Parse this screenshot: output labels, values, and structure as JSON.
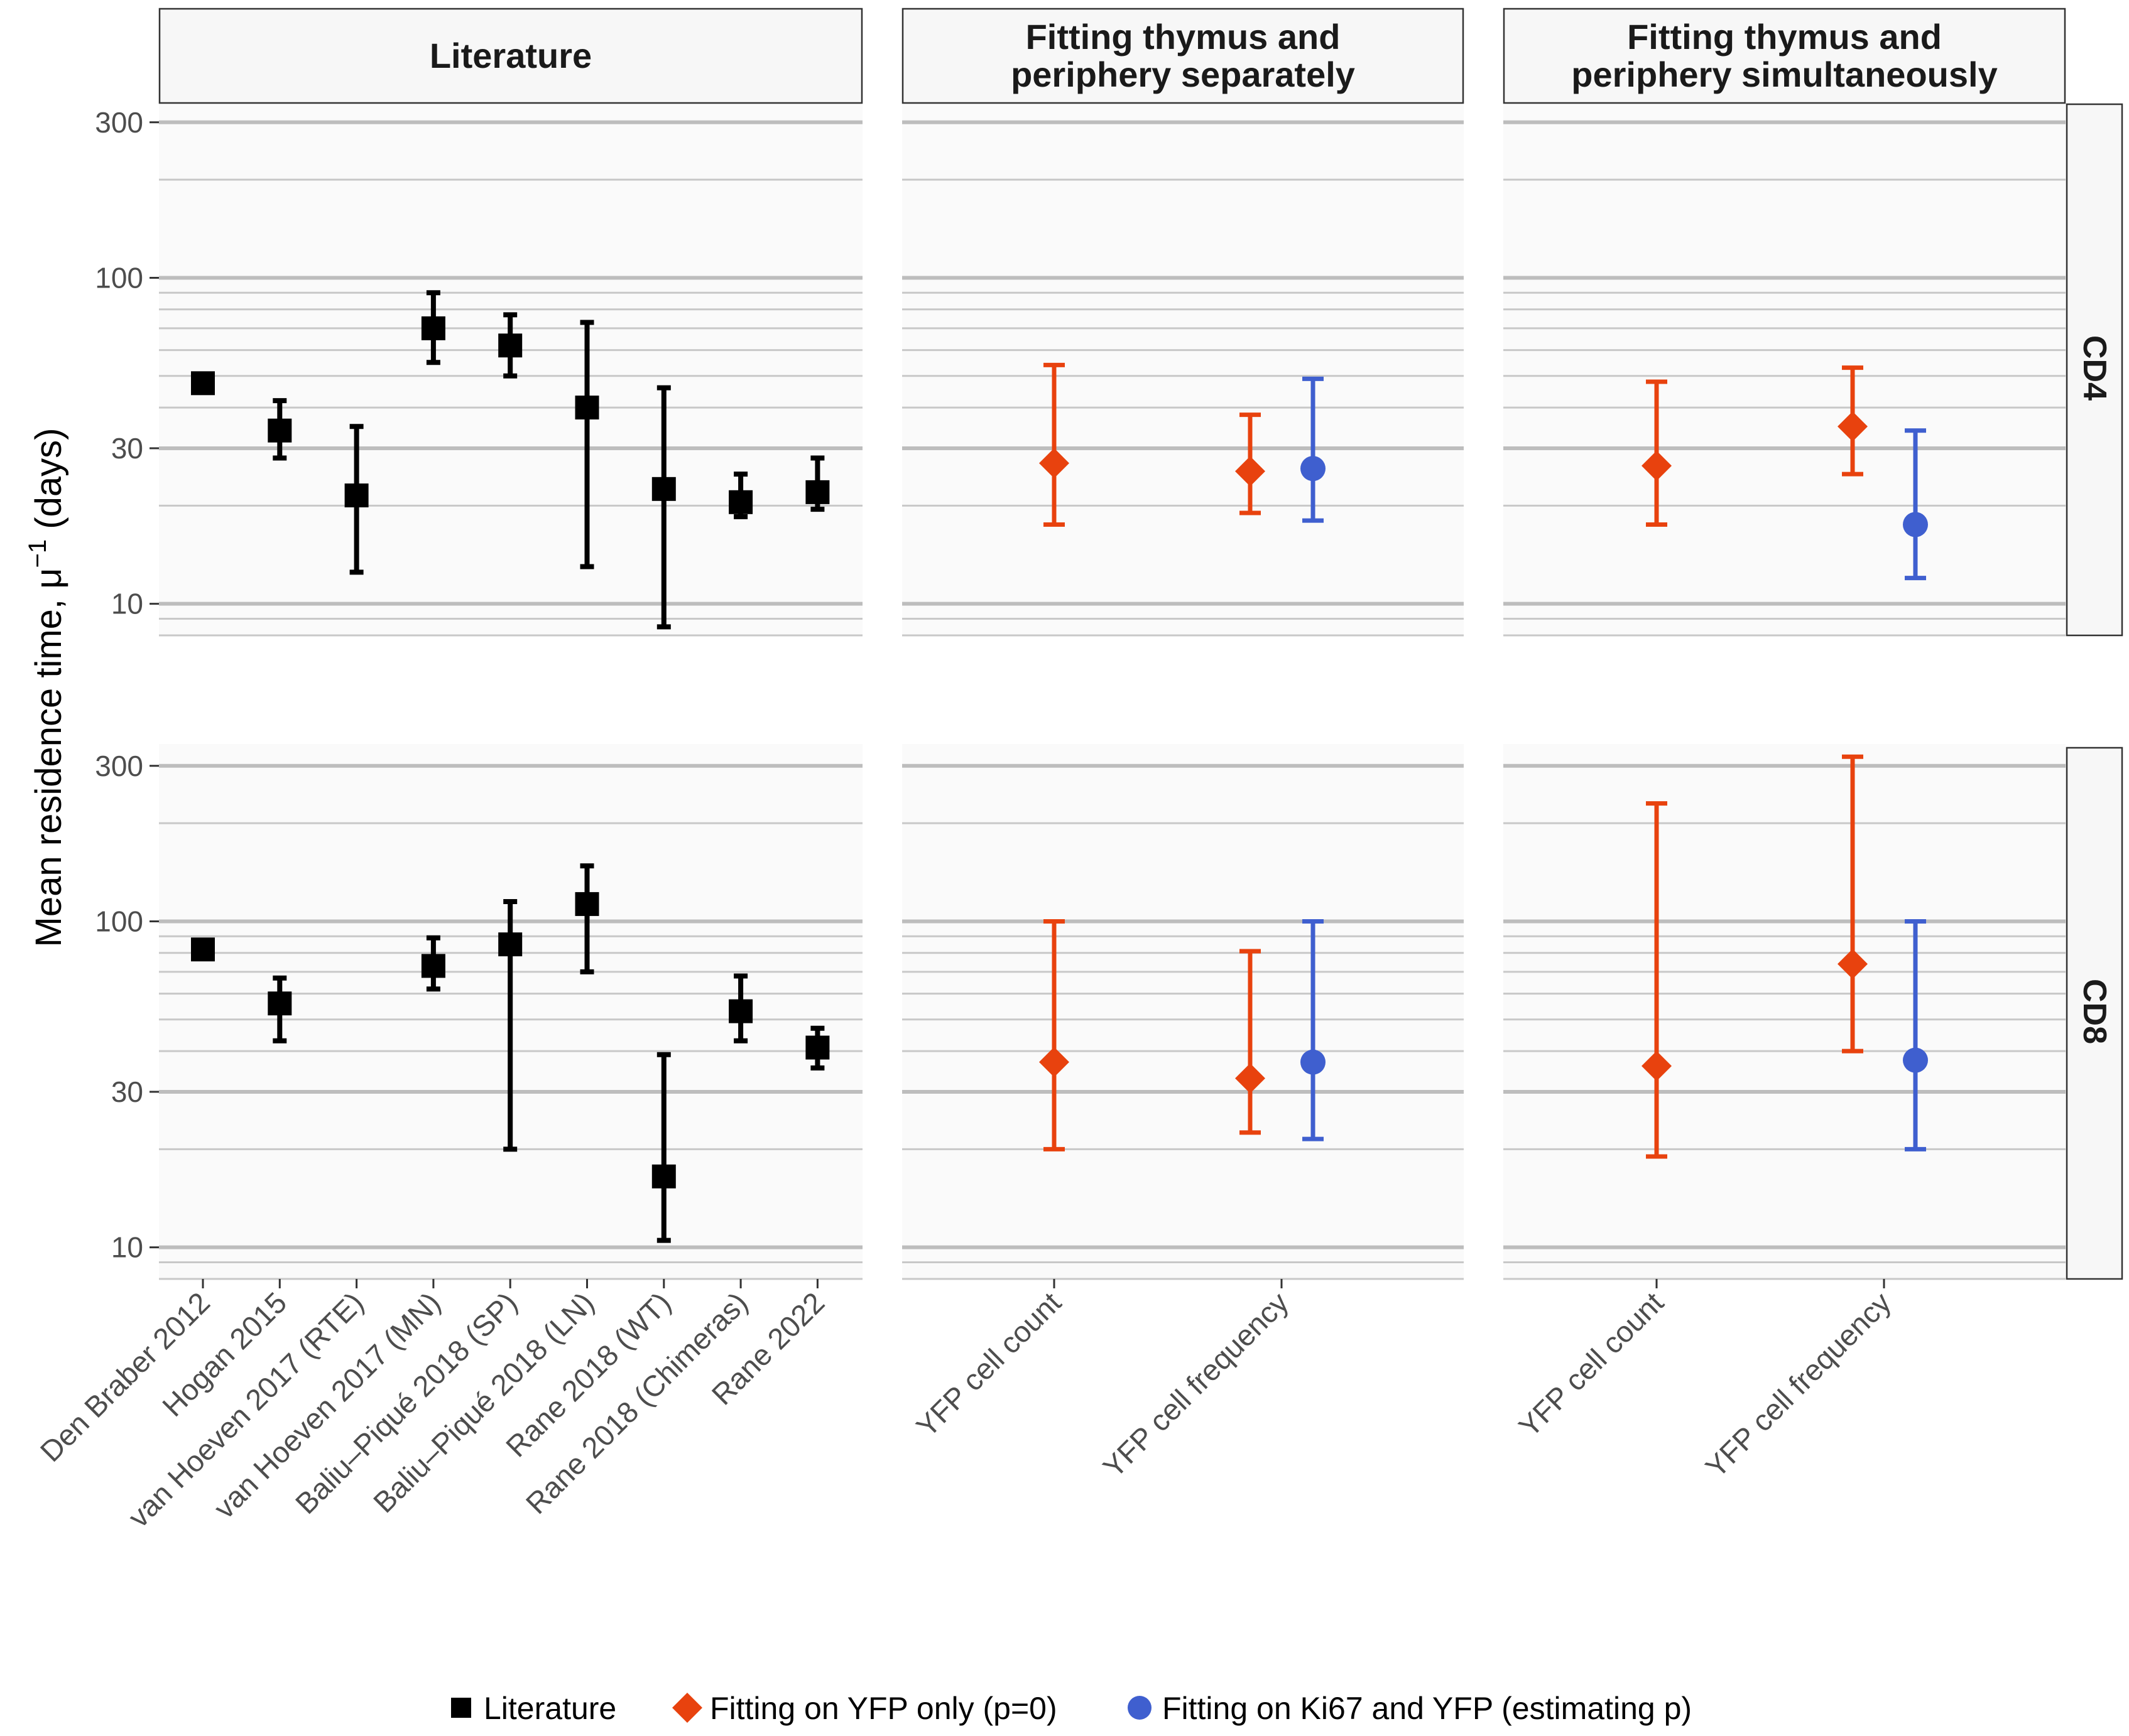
{
  "chart_data": {
    "type": "scatter",
    "y_label": "Mean residence time, μ",
    "y_label_sup": "−1",
    "y_label_suffix": " (days)",
    "y_scale": "log10",
    "y_range": [
      8,
      350
    ],
    "y_ticks": [
      10,
      30,
      100,
      300
    ],
    "y_tick_labels": [
      "10",
      "30",
      "100",
      "300"
    ],
    "columns": [
      {
        "key": "lit",
        "strip": [
          "Literature"
        ],
        "categories": [
          "Den Braber 2012",
          "Hogan 2015",
          "van Hoeven 2017 (RTE)",
          "van Hoeven 2017 (MN)",
          "Baliu–Piqué 2018 (SP)",
          "Baliu–Piqué 2018 (LN)",
          "Rane 2018 (WT)",
          "Rane 2018 (Chimeras)",
          "Rane 2022"
        ]
      },
      {
        "key": "sep",
        "strip": [
          "Fitting thymus and",
          "periphery separately"
        ],
        "categories": [
          "YFP cell count",
          "YFP cell frequency"
        ]
      },
      {
        "key": "sim",
        "strip": [
          "Fitting thymus and",
          "periphery simultaneously"
        ],
        "categories": [
          "YFP cell count",
          "YFP cell frequency"
        ]
      }
    ],
    "rows": [
      {
        "key": "CD4",
        "strip": "CD4"
      },
      {
        "key": "CD8",
        "strip": "CD8"
      }
    ],
    "series": [
      {
        "name": "Literature",
        "shape": "square",
        "color": "#000000"
      },
      {
        "name": "Fitting on YFP only (p=0)",
        "shape": "diamond",
        "color": "#E8420E"
      },
      {
        "name": "Fitting on Ki67 and YFP (estimating p)",
        "shape": "circle",
        "color": "#3F5FCF"
      }
    ],
    "points": [
      {
        "row": "CD4",
        "col": "lit",
        "cat": 0,
        "series": 0,
        "y": 47.5,
        "lo": null,
        "hi": null
      },
      {
        "row": "CD4",
        "col": "lit",
        "cat": 1,
        "series": 0,
        "y": 34,
        "lo": 28,
        "hi": 42
      },
      {
        "row": "CD4",
        "col": "lit",
        "cat": 2,
        "series": 0,
        "y": 21.5,
        "lo": 12.5,
        "hi": 35
      },
      {
        "row": "CD4",
        "col": "lit",
        "cat": 3,
        "series": 0,
        "y": 70,
        "lo": 55,
        "hi": 90
      },
      {
        "row": "CD4",
        "col": "lit",
        "cat": 4,
        "series": 0,
        "y": 62,
        "lo": 50,
        "hi": 77
      },
      {
        "row": "CD4",
        "col": "lit",
        "cat": 5,
        "series": 0,
        "y": 40,
        "lo": 13,
        "hi": 73
      },
      {
        "row": "CD4",
        "col": "lit",
        "cat": 6,
        "series": 0,
        "y": 22.5,
        "lo": 8.5,
        "hi": 46
      },
      {
        "row": "CD4",
        "col": "lit",
        "cat": 7,
        "series": 0,
        "y": 20.5,
        "lo": 18.5,
        "hi": 25
      },
      {
        "row": "CD4",
        "col": "lit",
        "cat": 8,
        "series": 0,
        "y": 22,
        "lo": 19.5,
        "hi": 28
      },
      {
        "row": "CD4",
        "col": "sep",
        "cat": 0,
        "series": 1,
        "y": 27,
        "lo": 17.5,
        "hi": 54
      },
      {
        "row": "CD4",
        "col": "sep",
        "cat": 1,
        "series": 1,
        "y": 25.5,
        "lo": 19,
        "hi": 38
      },
      {
        "row": "CD4",
        "col": "sep",
        "cat": 1,
        "series": 2,
        "y": 26,
        "lo": 18,
        "hi": 49
      },
      {
        "row": "CD4",
        "col": "sim",
        "cat": 0,
        "series": 1,
        "y": 26.5,
        "lo": 17.5,
        "hi": 48
      },
      {
        "row": "CD4",
        "col": "sim",
        "cat": 1,
        "series": 1,
        "y": 35,
        "lo": 25,
        "hi": 53
      },
      {
        "row": "CD4",
        "col": "sim",
        "cat": 1,
        "series": 2,
        "y": 17.5,
        "lo": 12,
        "hi": 34
      },
      {
        "row": "CD8",
        "col": "lit",
        "cat": 0,
        "series": 0,
        "y": 82,
        "lo": null,
        "hi": null
      },
      {
        "row": "CD8",
        "col": "lit",
        "cat": 1,
        "series": 0,
        "y": 56,
        "lo": 43,
        "hi": 67
      },
      {
        "row": "CD8",
        "col": "lit",
        "cat": 3,
        "series": 0,
        "y": 73,
        "lo": 62,
        "hi": 89
      },
      {
        "row": "CD8",
        "col": "lit",
        "cat": 4,
        "series": 0,
        "y": 85,
        "lo": 20,
        "hi": 115
      },
      {
        "row": "CD8",
        "col": "lit",
        "cat": 5,
        "series": 0,
        "y": 113,
        "lo": 70,
        "hi": 148
      },
      {
        "row": "CD8",
        "col": "lit",
        "cat": 6,
        "series": 0,
        "y": 16.5,
        "lo": 10.5,
        "hi": 39
      },
      {
        "row": "CD8",
        "col": "lit",
        "cat": 7,
        "series": 0,
        "y": 53,
        "lo": 43,
        "hi": 68
      },
      {
        "row": "CD8",
        "col": "lit",
        "cat": 8,
        "series": 0,
        "y": 41,
        "lo": 35.5,
        "hi": 47
      },
      {
        "row": "CD8",
        "col": "sep",
        "cat": 0,
        "series": 1,
        "y": 37,
        "lo": 20,
        "hi": 100
      },
      {
        "row": "CD8",
        "col": "sep",
        "cat": 1,
        "series": 1,
        "y": 33,
        "lo": 22.5,
        "hi": 81
      },
      {
        "row": "CD8",
        "col": "sep",
        "cat": 1,
        "series": 2,
        "y": 37,
        "lo": 21.5,
        "hi": 100
      },
      {
        "row": "CD8",
        "col": "sim",
        "cat": 0,
        "series": 1,
        "y": 36,
        "lo": 19,
        "hi": 230
      },
      {
        "row": "CD8",
        "col": "sim",
        "cat": 1,
        "series": 1,
        "y": 74,
        "lo": 40,
        "hi": 320
      },
      {
        "row": "CD8",
        "col": "sim",
        "cat": 1,
        "series": 2,
        "y": 37.5,
        "lo": 20,
        "hi": 100
      }
    ]
  },
  "legend": {
    "items": [
      {
        "label": "Literature",
        "shape": "square",
        "color": "#000000"
      },
      {
        "label": "Fitting on YFP only (p=0)",
        "shape": "diamond",
        "color": "#E8420E"
      },
      {
        "label": "Fitting on Ki67 and YFP (estimating p)",
        "shape": "circle",
        "color": "#3F5FCF"
      }
    ]
  }
}
